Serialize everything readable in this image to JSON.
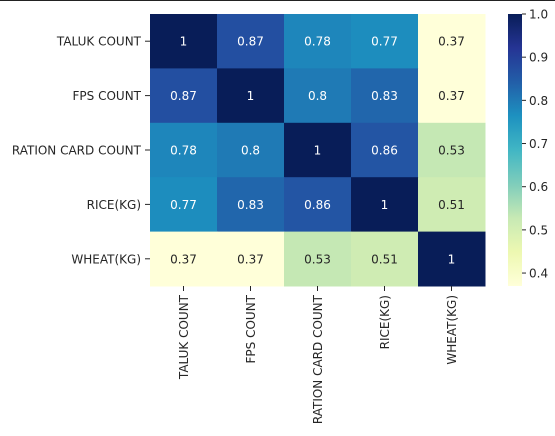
{
  "chart_data": {
    "type": "heatmap",
    "title": "",
    "xlabel": "",
    "ylabel": "",
    "rows": [
      "TALUK COUNT",
      "FPS COUNT",
      "RATION CARD COUNT",
      "RICE(KG)",
      "WHEAT(KG)"
    ],
    "columns": [
      "TALUK COUNT",
      "FPS COUNT",
      "RATION CARD COUNT",
      "RICE(KG)",
      "WHEAT(KG)"
    ],
    "values": [
      [
        1,
        0.87,
        0.78,
        0.77,
        0.37
      ],
      [
        0.87,
        1,
        0.8,
        0.83,
        0.37
      ],
      [
        0.78,
        0.8,
        1,
        0.86,
        0.53
      ],
      [
        0.77,
        0.83,
        0.86,
        1,
        0.51
      ],
      [
        0.37,
        0.37,
        0.53,
        0.51,
        1
      ]
    ],
    "value_labels": [
      [
        "1",
        "0.87",
        "0.78",
        "0.77",
        "0.37"
      ],
      [
        "0.87",
        "1",
        "0.8",
        "0.83",
        "0.37"
      ],
      [
        "0.78",
        "0.8",
        "1",
        "0.86",
        "0.53"
      ],
      [
        "0.77",
        "0.83",
        "0.86",
        "1",
        "0.51"
      ],
      [
        "0.37",
        "0.37",
        "0.53",
        "0.51",
        "1"
      ]
    ],
    "colormap": "YlGnBu",
    "annotated": true,
    "colorbar": {
      "placement": "right",
      "range": [
        0.37,
        1
      ],
      "ticks": [
        0.4,
        0.5,
        0.6,
        0.7,
        0.8,
        0.9,
        1.0
      ],
      "tick_labels": [
        "0.4",
        "0.5",
        "0.6",
        "0.7",
        "0.8",
        "0.9",
        "1.0"
      ]
    }
  }
}
